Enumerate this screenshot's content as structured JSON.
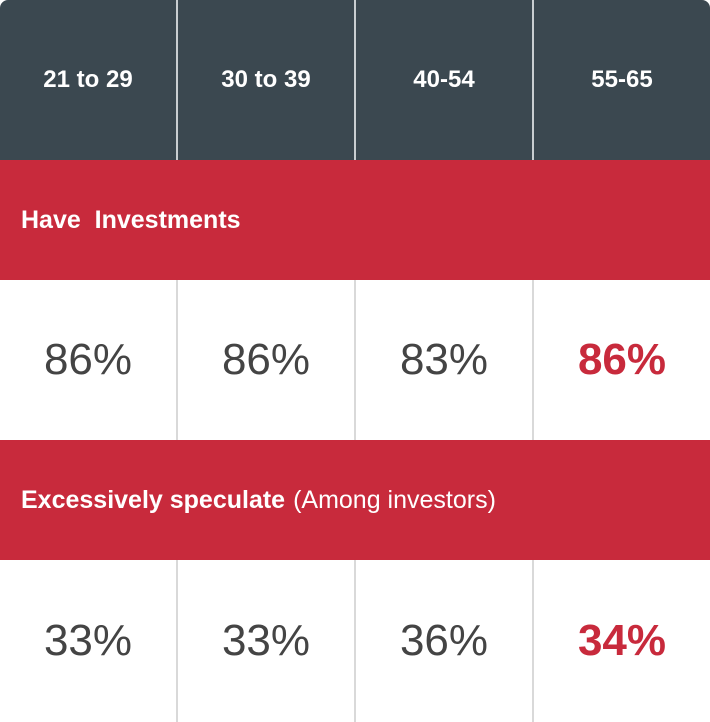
{
  "columns": [
    "21 to 29",
    "30 to 39",
    "40-54",
    "55-65"
  ],
  "sections": [
    {
      "title": "Have  Investments",
      "note": "",
      "values": [
        "86%",
        "86%",
        "83%",
        "86%"
      ]
    },
    {
      "title": "Excessively speculate",
      "note": "(Among investors)",
      "values": [
        "33%",
        "33%",
        "36%",
        "34%"
      ]
    }
  ],
  "colors": {
    "header_bg": "#3b4850",
    "section_bg": "#c82a3c",
    "highlight": "#c82a3c",
    "value_text": "#444444"
  }
}
